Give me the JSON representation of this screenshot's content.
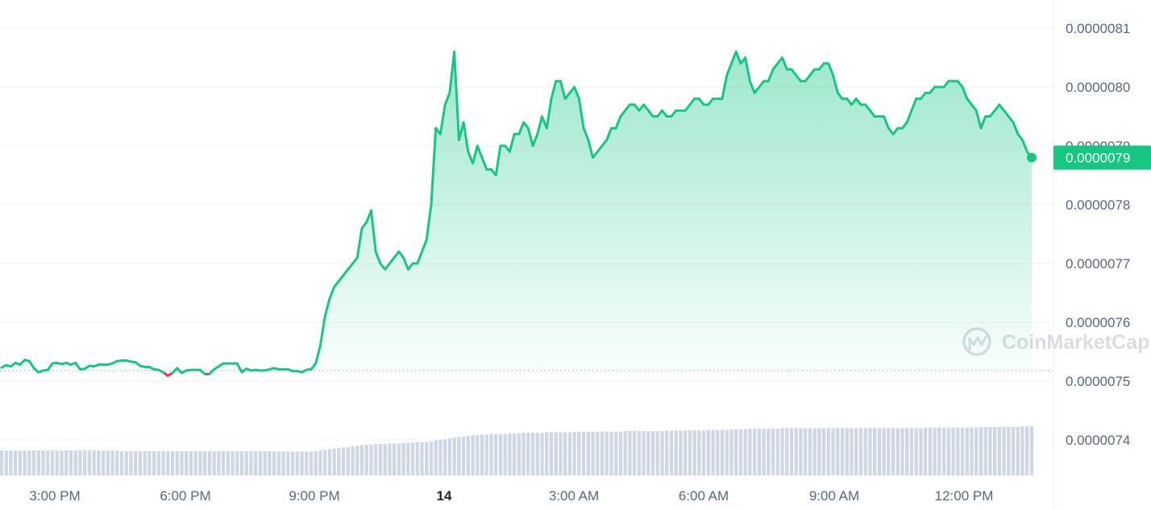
{
  "chart_data": {
    "type": "area",
    "y_axis": {
      "ticks": [
        "0.0000081",
        "0.0000080",
        "0.0000079",
        "0.0000078",
        "0.0000077",
        "0.0000076",
        "0.0000075",
        "0.0000074"
      ],
      "range": [
        7.38e-06,
        8.17e-06
      ],
      "grid": true,
      "position": "right"
    },
    "x_axis": {
      "ticks": [
        {
          "label": "3:00 PM",
          "bold": false
        },
        {
          "label": "6:00 PM",
          "bold": false
        },
        {
          "label": "9:00 PM",
          "bold": false
        },
        {
          "label": "14",
          "bold": true
        },
        {
          "label": "3:00 AM",
          "bold": false
        },
        {
          "label": "6:00 AM",
          "bold": false
        },
        {
          "label": "9:00 AM",
          "bold": false
        },
        {
          "label": "12:00 PM",
          "bold": false
        }
      ]
    },
    "reference_price": 7.518e-06,
    "current_price": {
      "value": 7.88e-06,
      "label": "0.0000079"
    },
    "series": [
      {
        "values": [
          7.523e-06,
          7.527e-06,
          7.525e-06,
          7.531e-06,
          7.528e-06,
          7.536e-06,
          7.534e-06,
          7.522e-06,
          7.515e-06,
          7.518e-06,
          7.519e-06,
          7.53e-06,
          7.531e-06,
          7.529e-06,
          7.531e-06,
          7.528e-06,
          7.531e-06,
          7.52e-06,
          7.521e-06,
          7.526e-06,
          7.525e-06,
          7.528e-06,
          7.528e-06,
          7.528e-06,
          7.53e-06,
          7.534e-06,
          7.535e-06,
          7.535e-06,
          7.533e-06,
          7.532e-06,
          7.526e-06,
          7.524e-06,
          7.524e-06,
          7.52e-06,
          7.519e-06,
          7.515e-06,
          7.509e-06,
          7.514e-06,
          7.522e-06,
          7.514e-06,
          7.518e-06,
          7.519e-06,
          7.519e-06,
          7.519e-06,
          7.512e-06,
          7.512e-06,
          7.52e-06,
          7.525e-06,
          7.53e-06,
          7.53e-06,
          7.53e-06,
          7.53e-06,
          7.515e-06,
          7.521e-06,
          7.518e-06,
          7.519e-06,
          7.518e-06,
          7.518e-06,
          7.52e-06,
          7.522e-06,
          7.52e-06,
          7.52e-06,
          7.52e-06,
          7.517e-06,
          7.517e-06,
          7.515e-06,
          7.519e-06,
          7.52e-06,
          7.53e-06,
          7.56e-06,
          7.61e-06,
          7.64e-06,
          7.66e-06,
          7.67e-06,
          7.68e-06,
          7.69e-06,
          7.7e-06,
          7.71e-06,
          7.76e-06,
          7.77e-06,
          7.79e-06,
          7.72e-06,
          7.7e-06,
          7.69e-06,
          7.7e-06,
          7.71e-06,
          7.72e-06,
          7.71e-06,
          7.69e-06,
          7.7e-06,
          7.7e-06,
          7.72e-06,
          7.74e-06,
          7.8e-06,
          7.93e-06,
          7.92e-06,
          7.97e-06,
          7.99e-06,
          8.06e-06,
          7.91e-06,
          7.94e-06,
          7.89e-06,
          7.87e-06,
          7.9e-06,
          7.88e-06,
          7.86e-06,
          7.86e-06,
          7.85e-06,
          7.9e-06,
          7.9e-06,
          7.89e-06,
          7.92e-06,
          7.92e-06,
          7.94e-06,
          7.93e-06,
          7.9e-06,
          7.92e-06,
          7.95e-06,
          7.93e-06,
          7.98e-06,
          8.01e-06,
          8.01e-06,
          7.98e-06,
          7.99e-06,
          8e-06,
          7.98e-06,
          7.93e-06,
          7.91e-06,
          7.88e-06,
          7.89e-06,
          7.9e-06,
          7.91e-06,
          7.93e-06,
          7.93e-06,
          7.95e-06,
          7.96e-06,
          7.97e-06,
          7.97e-06,
          7.96e-06,
          7.97e-06,
          7.96e-06,
          7.95e-06,
          7.95e-06,
          7.96e-06,
          7.95e-06,
          7.95e-06,
          7.96e-06,
          7.96e-06,
          7.96e-06,
          7.97e-06,
          7.98e-06,
          7.98e-06,
          7.97e-06,
          7.97e-06,
          7.98e-06,
          7.98e-06,
          7.98e-06,
          8.02e-06,
          8.04e-06,
          8.06e-06,
          8.04e-06,
          8.05e-06,
          8.01e-06,
          7.99e-06,
          8e-06,
          8.01e-06,
          8.01e-06,
          8.03e-06,
          8.04e-06,
          8.05e-06,
          8.03e-06,
          8.03e-06,
          8.02e-06,
          8.01e-06,
          8.01e-06,
          8.02e-06,
          8.03e-06,
          8.03e-06,
          8.04e-06,
          8.04e-06,
          8.02e-06,
          7.99e-06,
          7.98e-06,
          7.98e-06,
          7.97e-06,
          7.98e-06,
          7.97e-06,
          7.97e-06,
          7.96e-06,
          7.95e-06,
          7.95e-06,
          7.95e-06,
          7.93e-06,
          7.92e-06,
          7.93e-06,
          7.93e-06,
          7.94e-06,
          7.96e-06,
          7.98e-06,
          7.98e-06,
          7.99e-06,
          7.99e-06,
          8e-06,
          8e-06,
          8e-06,
          8.01e-06,
          8.01e-06,
          8.01e-06,
          8e-06,
          7.98e-06,
          7.97e-06,
          7.96e-06,
          7.93e-06,
          7.95e-06,
          7.95e-06,
          7.96e-06,
          7.97e-06,
          7.96e-06,
          7.95e-06,
          7.94e-06,
          7.92e-06,
          7.91e-06,
          7.89e-06,
          7.88e-06
        ]
      }
    ],
    "volume_values": [
      7.382e-06,
      7.382e-06,
      7.382e-06,
      7.382e-06,
      7.382e-06,
      7.382e-06,
      7.382e-06,
      7.382e-06,
      7.382e-06,
      7.382e-06,
      7.382e-06,
      7.382e-06,
      7.382e-06,
      7.382e-06,
      7.382e-06,
      7.382e-06,
      7.382e-06,
      7.382e-06,
      7.382e-06,
      7.382e-06,
      7.382e-06,
      7.382e-06,
      7.382e-06,
      7.382e-06,
      7.382e-06,
      7.382e-06,
      7.381e-06,
      7.381e-06,
      7.381e-06,
      7.381e-06,
      7.381e-06,
      7.381e-06,
      7.381e-06,
      7.381e-06,
      7.381e-06,
      7.381e-06,
      7.381e-06,
      7.381e-06,
      7.381e-06,
      7.381e-06,
      7.381e-06,
      7.381e-06,
      7.381e-06,
      7.381e-06,
      7.381e-06,
      7.381e-06,
      7.381e-06,
      7.381e-06,
      7.381e-06,
      7.381e-06,
      7.381e-06,
      7.381e-06,
      7.381e-06,
      7.381e-06,
      7.381e-06,
      7.381e-06,
      7.381e-06,
      7.381e-06,
      7.381e-06,
      7.381e-06,
      7.38e-06,
      7.38e-06,
      7.38e-06,
      7.38e-06,
      7.38e-06,
      7.38e-06,
      7.38e-06,
      7.38e-06,
      7.381e-06,
      7.382e-06,
      7.383e-06,
      7.384e-06,
      7.385e-06,
      7.386e-06,
      7.387e-06,
      7.388e-06,
      7.389e-06,
      7.39e-06,
      7.391e-06,
      7.392e-06,
      7.392e-06,
      7.393e-06,
      7.393e-06,
      7.393e-06,
      7.394e-06,
      7.394e-06,
      7.394e-06,
      7.395e-06,
      7.395e-06,
      7.395e-06,
      7.396e-06,
      7.396e-06,
      7.396e-06,
      7.397e-06,
      7.399e-06,
      7.4e-06,
      7.401e-06,
      7.403e-06,
      7.404e-06,
      7.405e-06,
      7.406e-06,
      7.407e-06,
      7.408e-06,
      7.408e-06,
      7.409e-06,
      7.409e-06,
      7.41e-06,
      7.41e-06,
      7.41e-06,
      7.41e-06,
      7.411e-06,
      7.411e-06,
      7.411e-06,
      7.412e-06,
      7.412e-06,
      7.412e-06,
      7.412e-06,
      7.412e-06,
      7.413e-06,
      7.413e-06,
      7.413e-06,
      7.413e-06,
      7.413e-06,
      7.413e-06,
      7.414e-06,
      7.414e-06,
      7.414e-06,
      7.414e-06,
      7.414e-06,
      7.414e-06,
      7.414e-06,
      7.414e-06,
      7.414e-06,
      7.414e-06,
      7.414e-06,
      7.415e-06,
      7.415e-06,
      7.415e-06,
      7.415e-06,
      7.415e-06,
      7.415e-06,
      7.415e-06,
      7.415e-06,
      7.415e-06,
      7.416e-06,
      7.416e-06,
      7.416e-06,
      7.416e-06,
      7.416e-06,
      7.416e-06,
      7.416e-06,
      7.416e-06,
      7.416e-06,
      7.417e-06,
      7.417e-06,
      7.417e-06,
      7.417e-06,
      7.417e-06,
      7.418e-06,
      7.418e-06,
      7.418e-06,
      7.418e-06,
      7.419e-06,
      7.419e-06,
      7.419e-06,
      7.419e-06,
      7.419e-06,
      7.419e-06,
      7.419e-06,
      7.42e-06,
      7.42e-06,
      7.42e-06,
      7.42e-06,
      7.42e-06,
      7.42e-06,
      7.42e-06,
      7.42e-06,
      7.42e-06,
      7.42e-06,
      7.42e-06,
      7.42e-06,
      7.42e-06,
      7.42e-06,
      7.42e-06,
      7.42e-06,
      7.42e-06,
      7.42e-06,
      7.42e-06,
      7.42e-06,
      7.42e-06,
      7.42e-06,
      7.42e-06,
      7.42e-06,
      7.42e-06,
      7.42e-06,
      7.42e-06,
      7.42e-06,
      7.42e-06,
      7.42e-06,
      7.42e-06,
      7.421e-06,
      7.421e-06,
      7.421e-06,
      7.421e-06,
      7.421e-06,
      7.421e-06,
      7.421e-06,
      7.421e-06,
      7.421e-06,
      7.421e-06,
      7.421e-06,
      7.421e-06,
      7.422e-06,
      7.422e-06,
      7.422e-06,
      7.422e-06,
      7.422e-06,
      7.422e-06,
      7.422e-06,
      7.422e-06,
      7.422e-06,
      7.423e-06,
      7.423e-06,
      7.423e-06
    ],
    "colors": {
      "up": "#16c784",
      "down": "#ea3943",
      "volume": "#cfd6e4",
      "grid": "#eff2f5",
      "reference_line": "#b1b8c4"
    }
  },
  "watermark": {
    "text": "CoinMarketCap",
    "icon": "coinmarketcap-logo-icon"
  }
}
